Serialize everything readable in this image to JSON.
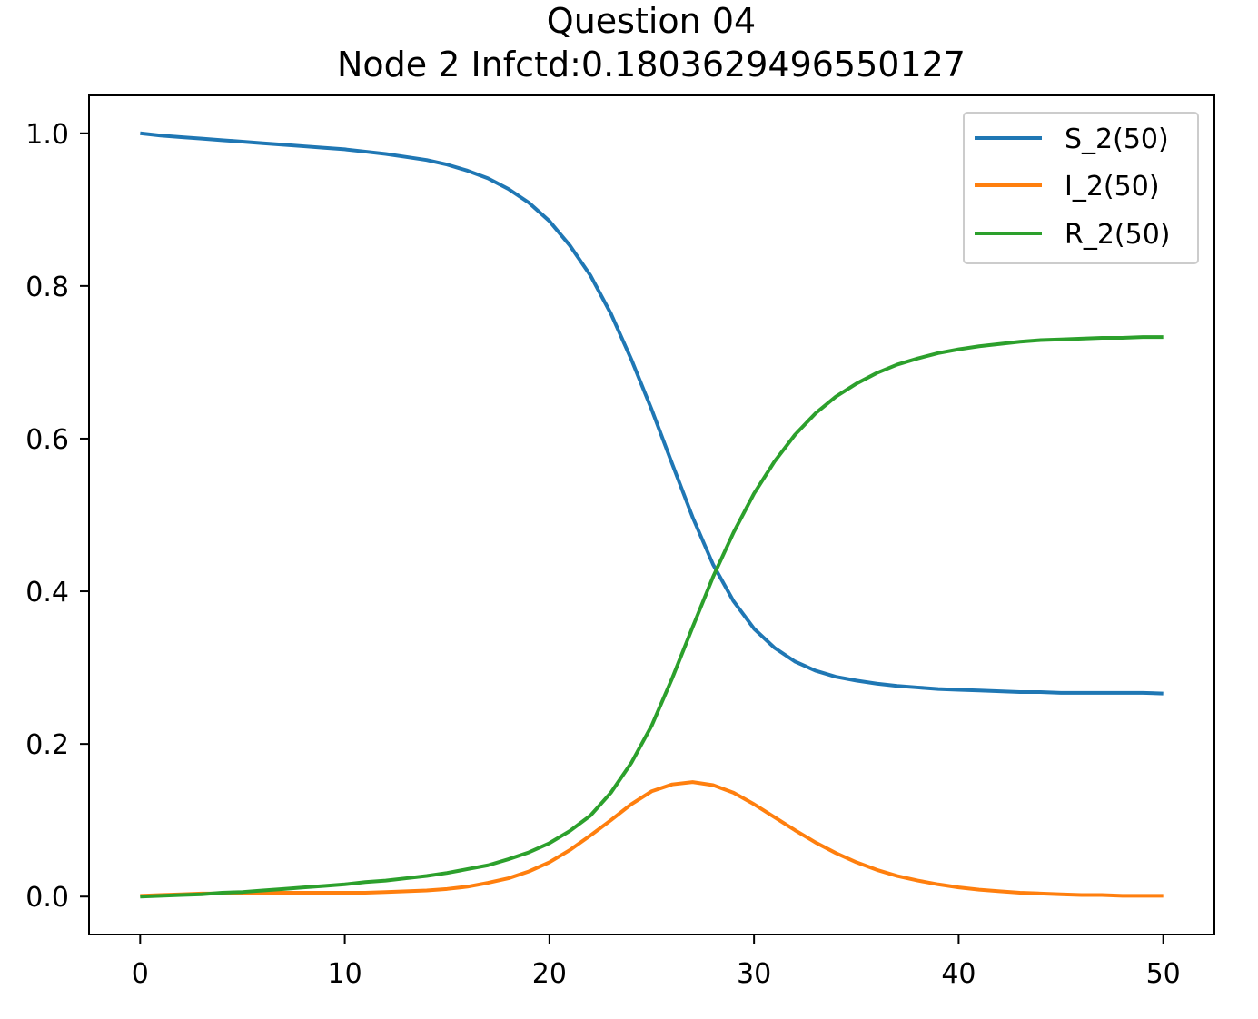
{
  "chart_data": {
    "type": "line",
    "title": "Question 04",
    "subtitle": "Node 2 Infctd:0.1803629496550127",
    "xlim": [
      -2.5,
      52.5
    ],
    "ylim": [
      -0.0497,
      1.0497
    ],
    "xticks": [
      0,
      10,
      20,
      30,
      40,
      50
    ],
    "yticks": [
      0.0,
      0.2,
      0.4,
      0.6,
      0.8,
      1.0
    ],
    "xtick_labels": [
      "0",
      "10",
      "20",
      "30",
      "40",
      "50"
    ],
    "ytick_labels": [
      "0.0",
      "0.2",
      "0.4",
      "0.6",
      "0.8",
      "1.0"
    ],
    "legend_position": "top-right",
    "grid": false,
    "x": [
      0,
      1,
      2,
      3,
      4,
      5,
      6,
      7,
      8,
      9,
      10,
      11,
      12,
      13,
      14,
      15,
      16,
      17,
      18,
      19,
      20,
      21,
      22,
      23,
      24,
      25,
      26,
      27,
      28,
      29,
      30,
      31,
      32,
      33,
      34,
      35,
      36,
      37,
      38,
      39,
      40,
      41,
      42,
      43,
      44,
      45,
      46,
      47,
      48,
      49,
      50
    ],
    "series": [
      {
        "name": "S_2(50)",
        "color": "#1f77b4",
        "values": [
          1.0,
          0.997,
          0.995,
          0.993,
          0.991,
          0.989,
          0.987,
          0.985,
          0.983,
          0.981,
          0.979,
          0.976,
          0.973,
          0.969,
          0.965,
          0.959,
          0.951,
          0.941,
          0.927,
          0.909,
          0.885,
          0.853,
          0.814,
          0.764,
          0.704,
          0.638,
          0.567,
          0.497,
          0.435,
          0.387,
          0.351,
          0.326,
          0.308,
          0.296,
          0.288,
          0.283,
          0.279,
          0.276,
          0.274,
          0.272,
          0.271,
          0.27,
          0.269,
          0.268,
          0.268,
          0.267,
          0.267,
          0.267,
          0.267,
          0.267,
          0.266
        ]
      },
      {
        "name": "I_2(50)",
        "color": "#ff7f0e",
        "values": [
          0.001,
          0.002,
          0.003,
          0.004,
          0.004,
          0.005,
          0.005,
          0.005,
          0.005,
          0.005,
          0.005,
          0.005,
          0.006,
          0.007,
          0.008,
          0.01,
          0.013,
          0.018,
          0.024,
          0.033,
          0.045,
          0.061,
          0.08,
          0.1,
          0.121,
          0.138,
          0.147,
          0.15,
          0.146,
          0.136,
          0.121,
          0.104,
          0.087,
          0.071,
          0.057,
          0.045,
          0.035,
          0.027,
          0.021,
          0.016,
          0.012,
          0.009,
          0.007,
          0.005,
          0.004,
          0.003,
          0.002,
          0.002,
          0.001,
          0.001,
          0.001
        ]
      },
      {
        "name": "R_2(50)",
        "color": "#2ca02c",
        "values": [
          0.0,
          0.001,
          0.002,
          0.003,
          0.005,
          0.006,
          0.008,
          0.01,
          0.012,
          0.014,
          0.016,
          0.019,
          0.021,
          0.024,
          0.027,
          0.031,
          0.036,
          0.041,
          0.049,
          0.058,
          0.07,
          0.086,
          0.106,
          0.136,
          0.175,
          0.224,
          0.286,
          0.353,
          0.419,
          0.477,
          0.528,
          0.57,
          0.605,
          0.633,
          0.655,
          0.672,
          0.686,
          0.697,
          0.705,
          0.712,
          0.717,
          0.721,
          0.724,
          0.727,
          0.729,
          0.73,
          0.731,
          0.732,
          0.732,
          0.733,
          0.733
        ]
      }
    ]
  }
}
